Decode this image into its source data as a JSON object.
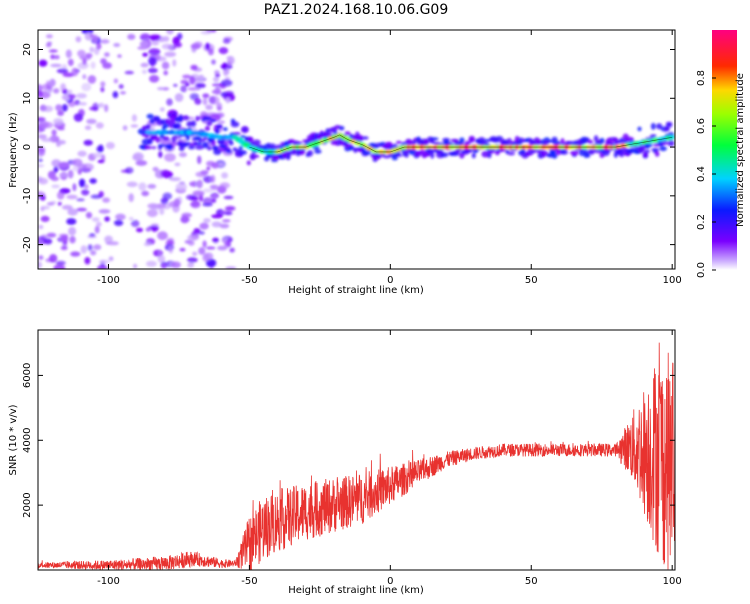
{
  "title": "PAZ1.2024.168.10.06.G09",
  "chart_data": [
    {
      "type": "heatmap",
      "xlabel": "Height of straight line (km)",
      "ylabel": "Frequency (Hz)",
      "xlim": [
        -125,
        101
      ],
      "ylim": [
        -25,
        24
      ],
      "xticks": [
        -100,
        -50,
        0,
        50,
        100
      ],
      "yticks": [
        -20,
        -10,
        0,
        10,
        20
      ],
      "colorbar": {
        "label": "Normalized spectral amplitude",
        "range": [
          0.0,
          1.0
        ],
        "ticks": [
          0.0,
          0.2,
          0.4,
          0.6,
          0.8
        ],
        "colormap": "rainbow (white/violet → blue → cyan → green → yellow → red → magenta)"
      },
      "ridge": {
        "x": [
          -88,
          -80,
          -70,
          -60,
          -55,
          -50,
          -45,
          -40,
          -35,
          -30,
          -25,
          -20,
          -18,
          -15,
          -10,
          -5,
          0,
          5,
          10,
          20,
          30,
          40,
          50,
          60,
          70,
          80,
          85,
          90,
          95,
          100
        ],
        "frequency": [
          3,
          3,
          3,
          2,
          2,
          0,
          -1,
          -1,
          0,
          0,
          1,
          2,
          2.5,
          1.5,
          0.5,
          -1,
          -1,
          0,
          0,
          0,
          0,
          0,
          0,
          0,
          0,
          0,
          0.5,
          1,
          1.5,
          2
        ]
      },
      "noise_region": {
        "x_range": [
          -125,
          -55
        ],
        "frequency_range": [
          -25,
          24
        ]
      }
    },
    {
      "type": "line",
      "xlabel": "Height of straight line (km)",
      "ylabel": "SNR (10 * v/v)",
      "xlim": [
        -125,
        101
      ],
      "ylim": [
        0,
        7400
      ],
      "xticks": [
        -100,
        -50,
        0,
        50,
        100
      ],
      "yticks": [
        2000,
        4000,
        6000
      ],
      "color": "#e8322f",
      "trend": {
        "x": [
          -125,
          -100,
          -80,
          -70,
          -60,
          -55,
          -50,
          -45,
          -40,
          -30,
          -20,
          -10,
          0,
          10,
          20,
          30,
          40,
          50,
          60,
          70,
          80,
          85,
          90,
          95,
          100
        ],
        "snr": [
          150,
          150,
          200,
          350,
          200,
          200,
          800,
          1300,
          1500,
          1800,
          2000,
          2200,
          2600,
          3000,
          3400,
          3600,
          3700,
          3700,
          3700,
          3700,
          3700,
          3800,
          3700,
          3600,
          3200
        ]
      },
      "noise_amplitude": {
        "x": [
          -125,
          -72,
          -55,
          -50,
          -45,
          -30,
          -10,
          0,
          10,
          20,
          30,
          80,
          85,
          90,
          95,
          100
        ],
        "amp": [
          80,
          250,
          100,
          900,
          1000,
          900,
          800,
          600,
          400,
          250,
          200,
          200,
          900,
          2000,
          3200,
          3500
        ]
      }
    }
  ]
}
